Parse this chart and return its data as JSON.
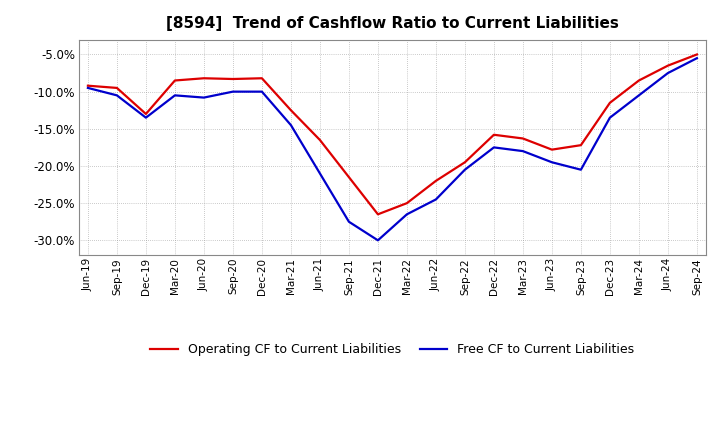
{
  "title": "[8594]  Trend of Cashflow Ratio to Current Liabilities",
  "x_labels": [
    "Jun-19",
    "Sep-19",
    "Dec-19",
    "Mar-20",
    "Jun-20",
    "Sep-20",
    "Dec-20",
    "Mar-21",
    "Jun-21",
    "Sep-21",
    "Dec-21",
    "Mar-22",
    "Jun-22",
    "Sep-22",
    "Dec-22",
    "Mar-23",
    "Jun-23",
    "Sep-23",
    "Dec-23",
    "Mar-24",
    "Jun-24",
    "Sep-24"
  ],
  "operating_cf": [
    -9.2,
    -9.5,
    -13.0,
    -8.5,
    -8.2,
    -8.3,
    -8.2,
    -12.5,
    -16.5,
    -21.5,
    -26.5,
    -25.0,
    -22.0,
    -19.5,
    -15.8,
    -16.3,
    -17.8,
    -17.2,
    -11.5,
    -8.5,
    -6.5,
    -5.0
  ],
  "free_cf": [
    -9.5,
    -10.5,
    -13.5,
    -10.5,
    -10.8,
    -10.0,
    -10.0,
    -14.5,
    -21.0,
    -27.5,
    -30.0,
    -26.5,
    -24.5,
    -20.5,
    -17.5,
    -18.0,
    -19.5,
    -20.5,
    -13.5,
    -10.5,
    -7.5,
    -5.5
  ],
  "operating_color": "#dd0000",
  "free_color": "#0000cc",
  "ylim_min": -32,
  "ylim_max": -3,
  "yticks": [
    -5,
    -10,
    -15,
    -20,
    -25,
    -30
  ],
  "ytick_labels": [
    "-5.0%",
    "-10.0%",
    "-15.0%",
    "-20.0%",
    "-25.0%",
    "-30.0%"
  ],
  "legend_operating": "Operating CF to Current Liabilities",
  "legend_free": "Free CF to Current Liabilities",
  "background_color": "#ffffff",
  "plot_bg_color": "#ffffff",
  "grid_color": "#999999",
  "line_width": 1.6,
  "title_fontsize": 11,
  "tick_fontsize": 7.5,
  "ytick_fontsize": 8.5
}
